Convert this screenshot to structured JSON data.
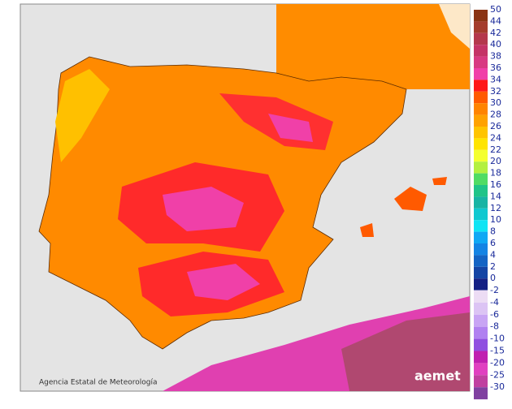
{
  "legend": {
    "items": [
      {
        "label": "50",
        "color": "#8a3414"
      },
      {
        "label": "44",
        "color": "#a43c2c"
      },
      {
        "label": "42",
        "color": "#b4384c"
      },
      {
        "label": "40",
        "color": "#c43466"
      },
      {
        "label": "38",
        "color": "#d83a82"
      },
      {
        "label": "36",
        "color": "#f040a8"
      },
      {
        "label": "34",
        "color": "#ff1818"
      },
      {
        "label": "32",
        "color": "#ff5a00"
      },
      {
        "label": "30",
        "color": "#ff8400"
      },
      {
        "label": "28",
        "color": "#ffa200"
      },
      {
        "label": "26",
        "color": "#ffc400"
      },
      {
        "label": "24",
        "color": "#ffe400"
      },
      {
        "label": "22",
        "color": "#f4ff30"
      },
      {
        "label": "20",
        "color": "#b4f040"
      },
      {
        "label": "18",
        "color": "#50dc64"
      },
      {
        "label": "16",
        "color": "#20c488"
      },
      {
        "label": "14",
        "color": "#18b4a4"
      },
      {
        "label": "12",
        "color": "#10c8d0"
      },
      {
        "label": "10",
        "color": "#10e4f4"
      },
      {
        "label": "8",
        "color": "#10a8f4"
      },
      {
        "label": "6",
        "color": "#1484e4"
      },
      {
        "label": "4",
        "color": "#1464c4"
      },
      {
        "label": "2",
        "color": "#1444a4"
      },
      {
        "label": "0",
        "color": "#142084"
      }
    ],
    "negative_items": [
      {
        "label": "-2",
        "color": "#ecdcf4"
      },
      {
        "label": "-4",
        "color": "#dcc4f4"
      },
      {
        "label": "-6",
        "color": "#c8a4f4"
      },
      {
        "label": "-8",
        "color": "#b080f0"
      },
      {
        "label": "-10",
        "color": "#9050e0"
      },
      {
        "label": "-15",
        "color": "#c020b0"
      },
      {
        "label": "-20",
        "color": "#e040c0"
      },
      {
        "label": "-25",
        "color": "#c040a0"
      },
      {
        "label": "-30",
        "color": "#8040a0"
      }
    ]
  },
  "credit": "Agencia Estatal de Meteorología",
  "logo": "aemet"
}
